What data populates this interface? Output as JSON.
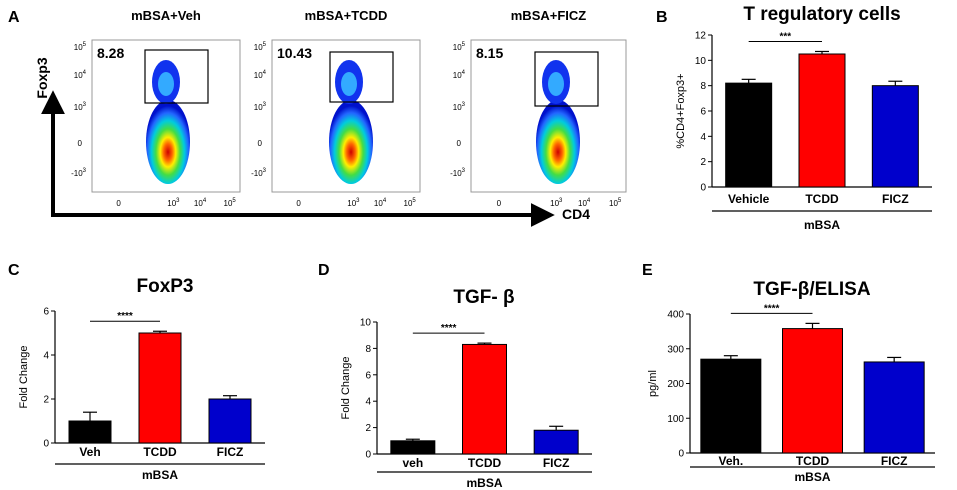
{
  "panel_letters": {
    "a": "A",
    "b": "B",
    "c": "C",
    "d": "D",
    "e": "E"
  },
  "flow": {
    "y_axis_label": "Foxp3",
    "x_axis_label": "CD4",
    "plots": [
      {
        "title": "mBSA+Veh",
        "gate_value": "8.28",
        "left_ticks": true
      },
      {
        "title": "mBSA+TCDD",
        "gate_value": "10.43",
        "left_ticks": true
      },
      {
        "title": "mBSA+FICZ",
        "gate_value": "8.15",
        "left_ticks": true
      }
    ],
    "y_ticks": [
      {
        "base": "10",
        "exp": "5"
      },
      {
        "base": "10",
        "exp": "4"
      },
      {
        "base": "10",
        "exp": "3"
      },
      {
        "base": "0",
        "exp": ""
      },
      {
        "base": "-10",
        "exp": "3"
      }
    ],
    "x_ticks": [
      {
        "base": "0",
        "exp": ""
      },
      {
        "base": "10",
        "exp": "3"
      },
      {
        "base": "10",
        "exp": "4"
      },
      {
        "base": "10",
        "exp": "5"
      }
    ]
  },
  "colors": {
    "vehicle": "#000000",
    "tcdd": "#ff0000",
    "ficz": "#0000cc"
  },
  "chart_data": [
    {
      "id": "B",
      "type": "bar",
      "title": "T regulatory cells",
      "ylabel": "%CD4+Foxp3+",
      "categories": [
        "Vehicle",
        "TCDD",
        "FICZ"
      ],
      "values": [
        8.2,
        10.5,
        8.0
      ],
      "errors": [
        0.3,
        0.2,
        0.35
      ],
      "ylim": [
        0,
        12
      ],
      "yticks": [
        "0",
        "2",
        "4",
        "6",
        "8",
        "10",
        "12"
      ],
      "group_label": "mBSA",
      "significance": "***",
      "title_size": "large"
    },
    {
      "id": "C",
      "type": "bar",
      "title": "FoxP3",
      "ylabel": "Fold Change",
      "categories": [
        "Veh",
        "TCDD",
        "FICZ"
      ],
      "values": [
        1.0,
        5.0,
        2.0
      ],
      "errors": [
        0.4,
        0.08,
        0.15
      ],
      "ylim": [
        0,
        6
      ],
      "yticks": [
        "0",
        "2",
        "4",
        "6"
      ],
      "group_label": "mBSA",
      "significance": "****",
      "title_size": "large"
    },
    {
      "id": "D",
      "type": "bar",
      "title": "TGF- β",
      "ylabel": "Fold Change",
      "categories": [
        "veh",
        "TCDD",
        "FICZ"
      ],
      "values": [
        1.0,
        8.3,
        1.8
      ],
      "errors": [
        0.12,
        0.1,
        0.3
      ],
      "ylim": [
        0,
        10
      ],
      "yticks": [
        "0",
        "2",
        "4",
        "6",
        "8",
        "10"
      ],
      "group_label": "mBSA",
      "significance": "****",
      "title_size": "large"
    },
    {
      "id": "E",
      "type": "bar",
      "title": "TGF-β/ELISA",
      "ylabel": "pg/ml",
      "categories": [
        "Veh.",
        "TCDD",
        "FICZ"
      ],
      "values": [
        270,
        358,
        262
      ],
      "errors": [
        10,
        15,
        13
      ],
      "ylim": [
        0,
        400
      ],
      "yticks": [
        "0",
        "100",
        "200",
        "300",
        "400"
      ],
      "group_label": "mBSA",
      "significance": "****",
      "title_size": "large"
    }
  ]
}
